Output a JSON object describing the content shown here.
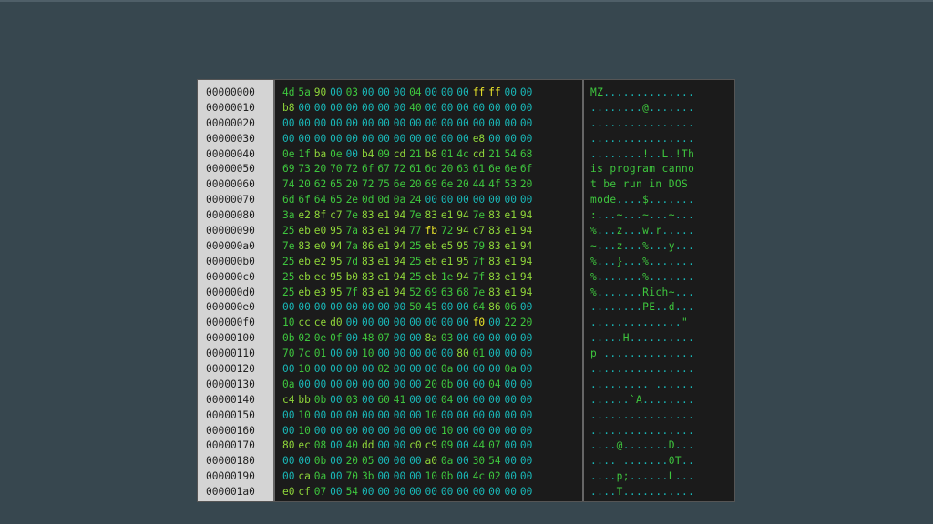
{
  "rows": [
    {
      "offset": "00000000",
      "bytes": [
        "4d",
        "5a",
        "90",
        "00",
        "03",
        "00",
        "00",
        "00",
        "04",
        "00",
        "00",
        "00",
        "ff",
        "ff",
        "00",
        "00"
      ],
      "ascii": "MZ.............."
    },
    {
      "offset": "00000010",
      "bytes": [
        "b8",
        "00",
        "00",
        "00",
        "00",
        "00",
        "00",
        "00",
        "40",
        "00",
        "00",
        "00",
        "00",
        "00",
        "00",
        "00"
      ],
      "ascii": "........@......."
    },
    {
      "offset": "00000020",
      "bytes": [
        "00",
        "00",
        "00",
        "00",
        "00",
        "00",
        "00",
        "00",
        "00",
        "00",
        "00",
        "00",
        "00",
        "00",
        "00",
        "00"
      ],
      "ascii": "................"
    },
    {
      "offset": "00000030",
      "bytes": [
        "00",
        "00",
        "00",
        "00",
        "00",
        "00",
        "00",
        "00",
        "00",
        "00",
        "00",
        "00",
        "e8",
        "00",
        "00",
        "00"
      ],
      "ascii": "................"
    },
    {
      "offset": "00000040",
      "bytes": [
        "0e",
        "1f",
        "ba",
        "0e",
        "00",
        "b4",
        "09",
        "cd",
        "21",
        "b8",
        "01",
        "4c",
        "cd",
        "21",
        "54",
        "68"
      ],
      "ascii": "........!..L.!Th"
    },
    {
      "offset": "00000050",
      "bytes": [
        "69",
        "73",
        "20",
        "70",
        "72",
        "6f",
        "67",
        "72",
        "61",
        "6d",
        "20",
        "63",
        "61",
        "6e",
        "6e",
        "6f"
      ],
      "ascii": "is program canno"
    },
    {
      "offset": "00000060",
      "bytes": [
        "74",
        "20",
        "62",
        "65",
        "20",
        "72",
        "75",
        "6e",
        "20",
        "69",
        "6e",
        "20",
        "44",
        "4f",
        "53",
        "20"
      ],
      "ascii": "t be run in DOS "
    },
    {
      "offset": "00000070",
      "bytes": [
        "6d",
        "6f",
        "64",
        "65",
        "2e",
        "0d",
        "0d",
        "0a",
        "24",
        "00",
        "00",
        "00",
        "00",
        "00",
        "00",
        "00"
      ],
      "ascii": "mode....$......."
    },
    {
      "offset": "00000080",
      "bytes": [
        "3a",
        "e2",
        "8f",
        "c7",
        "7e",
        "83",
        "e1",
        "94",
        "7e",
        "83",
        "e1",
        "94",
        "7e",
        "83",
        "e1",
        "94"
      ],
      "ascii": ":...~...~...~..."
    },
    {
      "offset": "00000090",
      "bytes": [
        "25",
        "eb",
        "e0",
        "95",
        "7a",
        "83",
        "e1",
        "94",
        "77",
        "fb",
        "72",
        "94",
        "c7",
        "83",
        "e1",
        "94"
      ],
      "ascii": "%...z...w.r....."
    },
    {
      "offset": "000000a0",
      "bytes": [
        "7e",
        "83",
        "e0",
        "94",
        "7a",
        "86",
        "e1",
        "94",
        "25",
        "eb",
        "e5",
        "95",
        "79",
        "83",
        "e1",
        "94"
      ],
      "ascii": "~...z...%...y..."
    },
    {
      "offset": "000000b0",
      "bytes": [
        "25",
        "eb",
        "e2",
        "95",
        "7d",
        "83",
        "e1",
        "94",
        "25",
        "eb",
        "e1",
        "95",
        "7f",
        "83",
        "e1",
        "94"
      ],
      "ascii": "%...}...%......."
    },
    {
      "offset": "000000c0",
      "bytes": [
        "25",
        "eb",
        "ec",
        "95",
        "b0",
        "83",
        "e1",
        "94",
        "25",
        "eb",
        "1e",
        "94",
        "7f",
        "83",
        "e1",
        "94"
      ],
      "ascii": "%.......%......."
    },
    {
      "offset": "000000d0",
      "bytes": [
        "25",
        "eb",
        "e3",
        "95",
        "7f",
        "83",
        "e1",
        "94",
        "52",
        "69",
        "63",
        "68",
        "7e",
        "83",
        "e1",
        "94"
      ],
      "ascii": "%.......Rich~..."
    },
    {
      "offset": "000000e0",
      "bytes": [
        "00",
        "00",
        "00",
        "00",
        "00",
        "00",
        "00",
        "00",
        "50",
        "45",
        "00",
        "00",
        "64",
        "86",
        "06",
        "00"
      ],
      "ascii": "........PE..d..."
    },
    {
      "offset": "000000f0",
      "bytes": [
        "10",
        "cc",
        "ce",
        "d0",
        "00",
        "00",
        "00",
        "00",
        "00",
        "00",
        "00",
        "00",
        "f0",
        "00",
        "22",
        "20"
      ],
      "ascii": "..............\" "
    },
    {
      "offset": "00000100",
      "bytes": [
        "0b",
        "02",
        "0e",
        "0f",
        "00",
        "48",
        "07",
        "00",
        "00",
        "8a",
        "03",
        "00",
        "00",
        "00",
        "00",
        "00"
      ],
      "ascii": ".....H.........."
    },
    {
      "offset": "00000110",
      "bytes": [
        "70",
        "7c",
        "01",
        "00",
        "00",
        "10",
        "00",
        "00",
        "00",
        "00",
        "00",
        "80",
        "01",
        "00",
        "00",
        "00"
      ],
      "ascii": "p|.............."
    },
    {
      "offset": "00000120",
      "bytes": [
        "00",
        "10",
        "00",
        "00",
        "00",
        "00",
        "02",
        "00",
        "00",
        "00",
        "0a",
        "00",
        "00",
        "00",
        "0a",
        "00"
      ],
      "ascii": "................"
    },
    {
      "offset": "00000130",
      "bytes": [
        "0a",
        "00",
        "00",
        "00",
        "00",
        "00",
        "00",
        "00",
        "00",
        "20",
        "0b",
        "00",
        "00",
        "04",
        "00",
        "00"
      ],
      "ascii": "......... ......"
    },
    {
      "offset": "00000140",
      "bytes": [
        "c4",
        "bb",
        "0b",
        "00",
        "03",
        "00",
        "60",
        "41",
        "00",
        "00",
        "04",
        "00",
        "00",
        "00",
        "00",
        "00"
      ],
      "ascii": "......`A........"
    },
    {
      "offset": "00000150",
      "bytes": [
        "00",
        "10",
        "00",
        "00",
        "00",
        "00",
        "00",
        "00",
        "00",
        "10",
        "00",
        "00",
        "00",
        "00",
        "00",
        "00"
      ],
      "ascii": "................"
    },
    {
      "offset": "00000160",
      "bytes": [
        "00",
        "10",
        "00",
        "00",
        "00",
        "00",
        "00",
        "00",
        "00",
        "00",
        "10",
        "00",
        "00",
        "00",
        "00",
        "00"
      ],
      "ascii": "................"
    },
    {
      "offset": "00000170",
      "bytes": [
        "80",
        "ec",
        "08",
        "00",
        "40",
        "dd",
        "00",
        "00",
        "c0",
        "c9",
        "09",
        "00",
        "44",
        "07",
        "00",
        "00"
      ],
      "ascii": "....@.......D..."
    },
    {
      "offset": "00000180",
      "bytes": [
        "00",
        "00",
        "0b",
        "00",
        "20",
        "05",
        "00",
        "00",
        "00",
        "a0",
        "0a",
        "00",
        "30",
        "54",
        "00",
        "00"
      ],
      "ascii": ".... .......0T.."
    },
    {
      "offset": "00000190",
      "bytes": [
        "00",
        "ca",
        "0a",
        "00",
        "70",
        "3b",
        "00",
        "00",
        "00",
        "10",
        "0b",
        "00",
        "4c",
        "02",
        "00",
        "00"
      ],
      "ascii": "....p;......L..."
    },
    {
      "offset": "000001a0",
      "bytes": [
        "e0",
        "cf",
        "07",
        "00",
        "54",
        "00",
        "00",
        "00",
        "00",
        "00",
        "00",
        "00",
        "00",
        "00",
        "00",
        "00"
      ],
      "ascii": "....T..........."
    }
  ],
  "colors": {
    "background": "#37474f",
    "offset_panel": "#d4d4d4",
    "hex_panel": "#1b1b1b",
    "byte_zero": "#19b8b8",
    "byte_low": "#3ec63e",
    "byte_mid": "#8fd63a",
    "byte_high": "#e9e52a"
  }
}
